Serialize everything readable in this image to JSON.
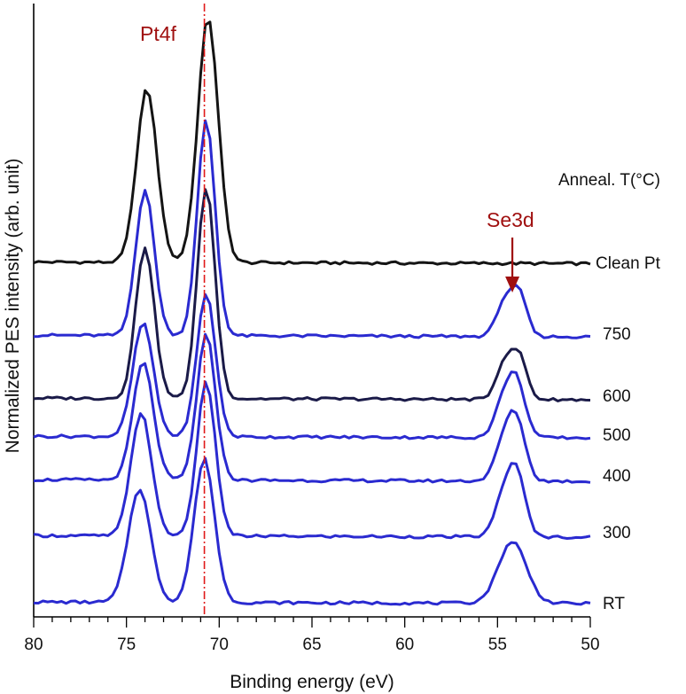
{
  "chart_data": {
    "type": "line",
    "title": "",
    "xlabel": "Binding energy (eV)",
    "ylabel": "Normalized PES intensity (arb. unit)",
    "xlim": [
      80,
      50
    ],
    "x_reversed": true,
    "xticks": [
      80,
      75,
      70,
      65,
      60,
      55,
      50
    ],
    "y_ticks_shown": false,
    "legend_title": "Anneal. T(°C)",
    "annotations": {
      "pt4f": "Pt4f",
      "se3d": "Se3d",
      "pt4f_reference_line_ev": 70.8,
      "se3d_arrow_ev": 54.2
    },
    "series_colors": {
      "black": "#141414",
      "blue": "#2a2ad0",
      "dark_navy": "#1a1a48",
      "annotation": "#a01010"
    },
    "series": [
      {
        "name": "Clean Pt",
        "color": "black",
        "baseline": 0.99,
        "slope": 0.04,
        "peaks": [
          {
            "ev": 73.9,
            "height": 4.35,
            "sigma": 0.55
          },
          {
            "ev": 70.6,
            "height": 6.15,
            "sigma": 0.55
          }
        ]
      },
      {
        "name": "750",
        "color": "blue",
        "baseline": 1.0,
        "slope": 0.04,
        "peaks": [
          {
            "ev": 74.0,
            "height": 3.65,
            "sigma": 0.5
          },
          {
            "ev": 70.7,
            "height": 5.4,
            "sigma": 0.48
          },
          {
            "ev": 54.6,
            "height": 0.9,
            "sigma": 0.45
          },
          {
            "ev": 53.8,
            "height": 1.0,
            "sigma": 0.4
          }
        ]
      },
      {
        "name": "600",
        "color": "dark_navy",
        "baseline": 1.0,
        "slope": 0.04,
        "peaks": [
          {
            "ev": 74.0,
            "height": 3.8,
            "sigma": 0.5
          },
          {
            "ev": 70.7,
            "height": 5.3,
            "sigma": 0.48
          },
          {
            "ev": 54.6,
            "height": 0.95,
            "sigma": 0.45
          },
          {
            "ev": 53.8,
            "height": 1.0,
            "sigma": 0.4
          }
        ]
      },
      {
        "name": "500",
        "color": "blue",
        "baseline": 1.0,
        "slope": 0.04,
        "peaks": [
          {
            "ev": 74.1,
            "height": 2.85,
            "sigma": 0.55
          },
          {
            "ev": 70.7,
            "height": 3.6,
            "sigma": 0.5
          },
          {
            "ev": 54.6,
            "height": 1.0,
            "sigma": 0.5
          },
          {
            "ev": 53.9,
            "height": 1.15,
            "sigma": 0.45
          }
        ]
      },
      {
        "name": "400",
        "color": "blue",
        "baseline": 1.0,
        "slope": 0.04,
        "peaks": [
          {
            "ev": 74.1,
            "height": 2.95,
            "sigma": 0.55
          },
          {
            "ev": 70.7,
            "height": 3.65,
            "sigma": 0.5
          },
          {
            "ev": 54.6,
            "height": 1.05,
            "sigma": 0.5
          },
          {
            "ev": 53.9,
            "height": 1.25,
            "sigma": 0.45
          }
        ]
      },
      {
        "name": "300",
        "color": "blue",
        "baseline": 1.0,
        "slope": 0.04,
        "peaks": [
          {
            "ev": 74.2,
            "height": 3.1,
            "sigma": 0.55
          },
          {
            "ev": 70.7,
            "height": 3.85,
            "sigma": 0.5
          },
          {
            "ev": 54.6,
            "height": 1.1,
            "sigma": 0.5
          },
          {
            "ev": 53.9,
            "height": 1.3,
            "sigma": 0.45
          }
        ]
      },
      {
        "name": "RT",
        "color": "blue",
        "baseline": 1.0,
        "slope": 0.04,
        "peaks": [
          {
            "ev": 74.3,
            "height": 2.85,
            "sigma": 0.6
          },
          {
            "ev": 70.8,
            "height": 3.6,
            "sigma": 0.55
          },
          {
            "ev": 54.2,
            "height": 1.55,
            "sigma": 0.75
          }
        ]
      }
    ]
  }
}
